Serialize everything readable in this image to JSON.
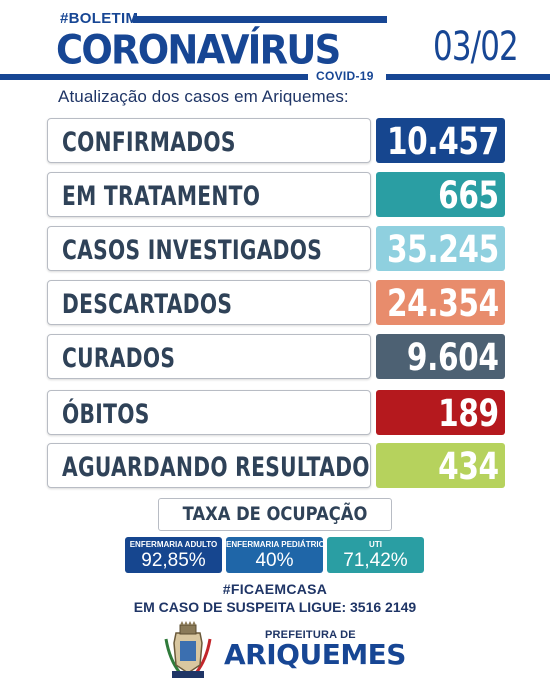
{
  "header": {
    "tag": "#BOLETIM",
    "title": "CORONAVÍRUS",
    "covid": "COVID-19",
    "date": "03/02",
    "subtitle": "Atualização dos casos em Ariquemes:"
  },
  "rows": [
    {
      "label": "CONFIRMADOS",
      "value": "10.457",
      "color": "#16468f"
    },
    {
      "label": "EM TRATAMENTO",
      "value": "665",
      "color": "#2a9ea3"
    },
    {
      "label": "CASOS INVESTIGADOS",
      "value": "35.245",
      "color": "#8fd0df"
    },
    {
      "label": "DESCARTADOS",
      "value": "24.354",
      "color": "#e88c6c"
    },
    {
      "label": "CURADOS",
      "value": "9.604",
      "color": "#4d6173"
    },
    {
      "label": "ÓBITOS",
      "value": "189",
      "color": "#b5191e"
    },
    {
      "label": "AGUARDANDO RESULTADO",
      "value": "434",
      "color": "#b6d25d"
    }
  ],
  "occupancy": {
    "title": "TAXA DE OCUPAÇÃO",
    "items": [
      {
        "label": "ENFERMARIA ADULTO",
        "value": "92,85%",
        "color": "#16468f"
      },
      {
        "label": "ENFERMARIA PEDIÁTRICA",
        "value": "40%",
        "color": "#1f66a8"
      },
      {
        "label": "UTI",
        "value": "71,42%",
        "color": "#2a9ea3"
      }
    ]
  },
  "footer": {
    "hashtag": "#FICAEMCASA",
    "phone_line": "EM CASO DE SUSPEITA LIGUE: 3516 2149",
    "pref_small": "PREFEITURA DE",
    "pref_big": "ARIQUEMES"
  }
}
